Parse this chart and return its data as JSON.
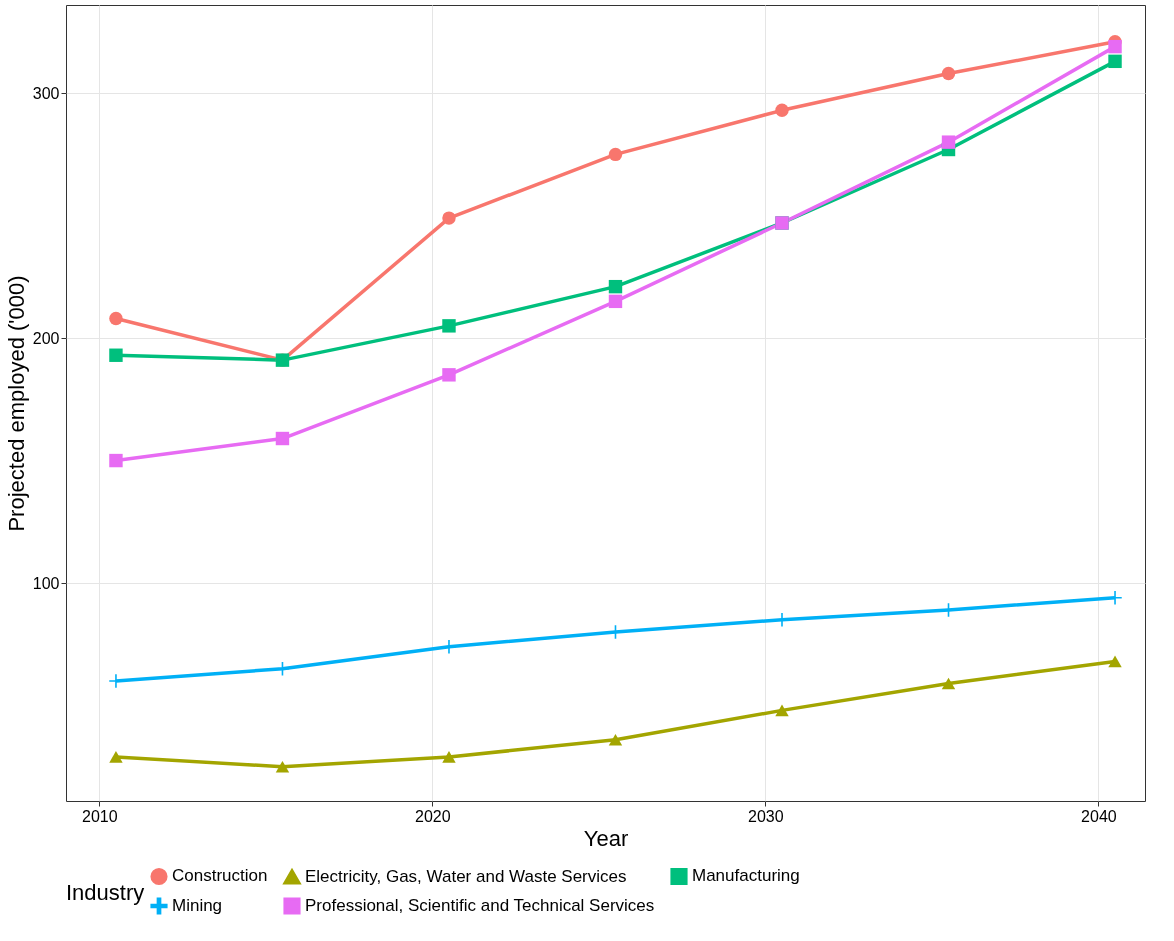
{
  "chart_data": {
    "type": "line",
    "xlabel": "Year",
    "ylabel": "Projected employed ('000)",
    "legend_title": "Industry",
    "x": [
      2010.5,
      2015.5,
      2020.5,
      2025.5,
      2030.5,
      2035.5,
      2040.5
    ],
    "xlim": [
      2009,
      2041.4
    ],
    "xticks": [
      2010,
      2020,
      2030,
      2040
    ],
    "ylim": [
      11,
      336
    ],
    "yticks": [
      100,
      200,
      300
    ],
    "grid": true,
    "legend": "bottom",
    "line_style": "solid",
    "series": [
      {
        "name": "Construction",
        "color": "#f8766d",
        "marker": "circle",
        "values": [
          208,
          191,
          249,
          275,
          293,
          308,
          321
        ]
      },
      {
        "name": "Electricity, Gas, Water and Waste Services",
        "color": "#a3a500",
        "marker": "triangle",
        "values": [
          29,
          25,
          29,
          36,
          48,
          59,
          68
        ]
      },
      {
        "name": "Manufacturing",
        "color": "#00bf7d",
        "marker": "square",
        "values": [
          193,
          191,
          205,
          221,
          247,
          277,
          313
        ]
      },
      {
        "name": "Mining",
        "color": "#00b0f6",
        "marker": "cross",
        "values": [
          60,
          65,
          74,
          80,
          85,
          89,
          94
        ]
      },
      {
        "name": "Professional, Scientific and Technical Services",
        "color": "#e76bf3",
        "marker": "square",
        "values": [
          150,
          159,
          185,
          215,
          247,
          280,
          319
        ]
      }
    ]
  }
}
